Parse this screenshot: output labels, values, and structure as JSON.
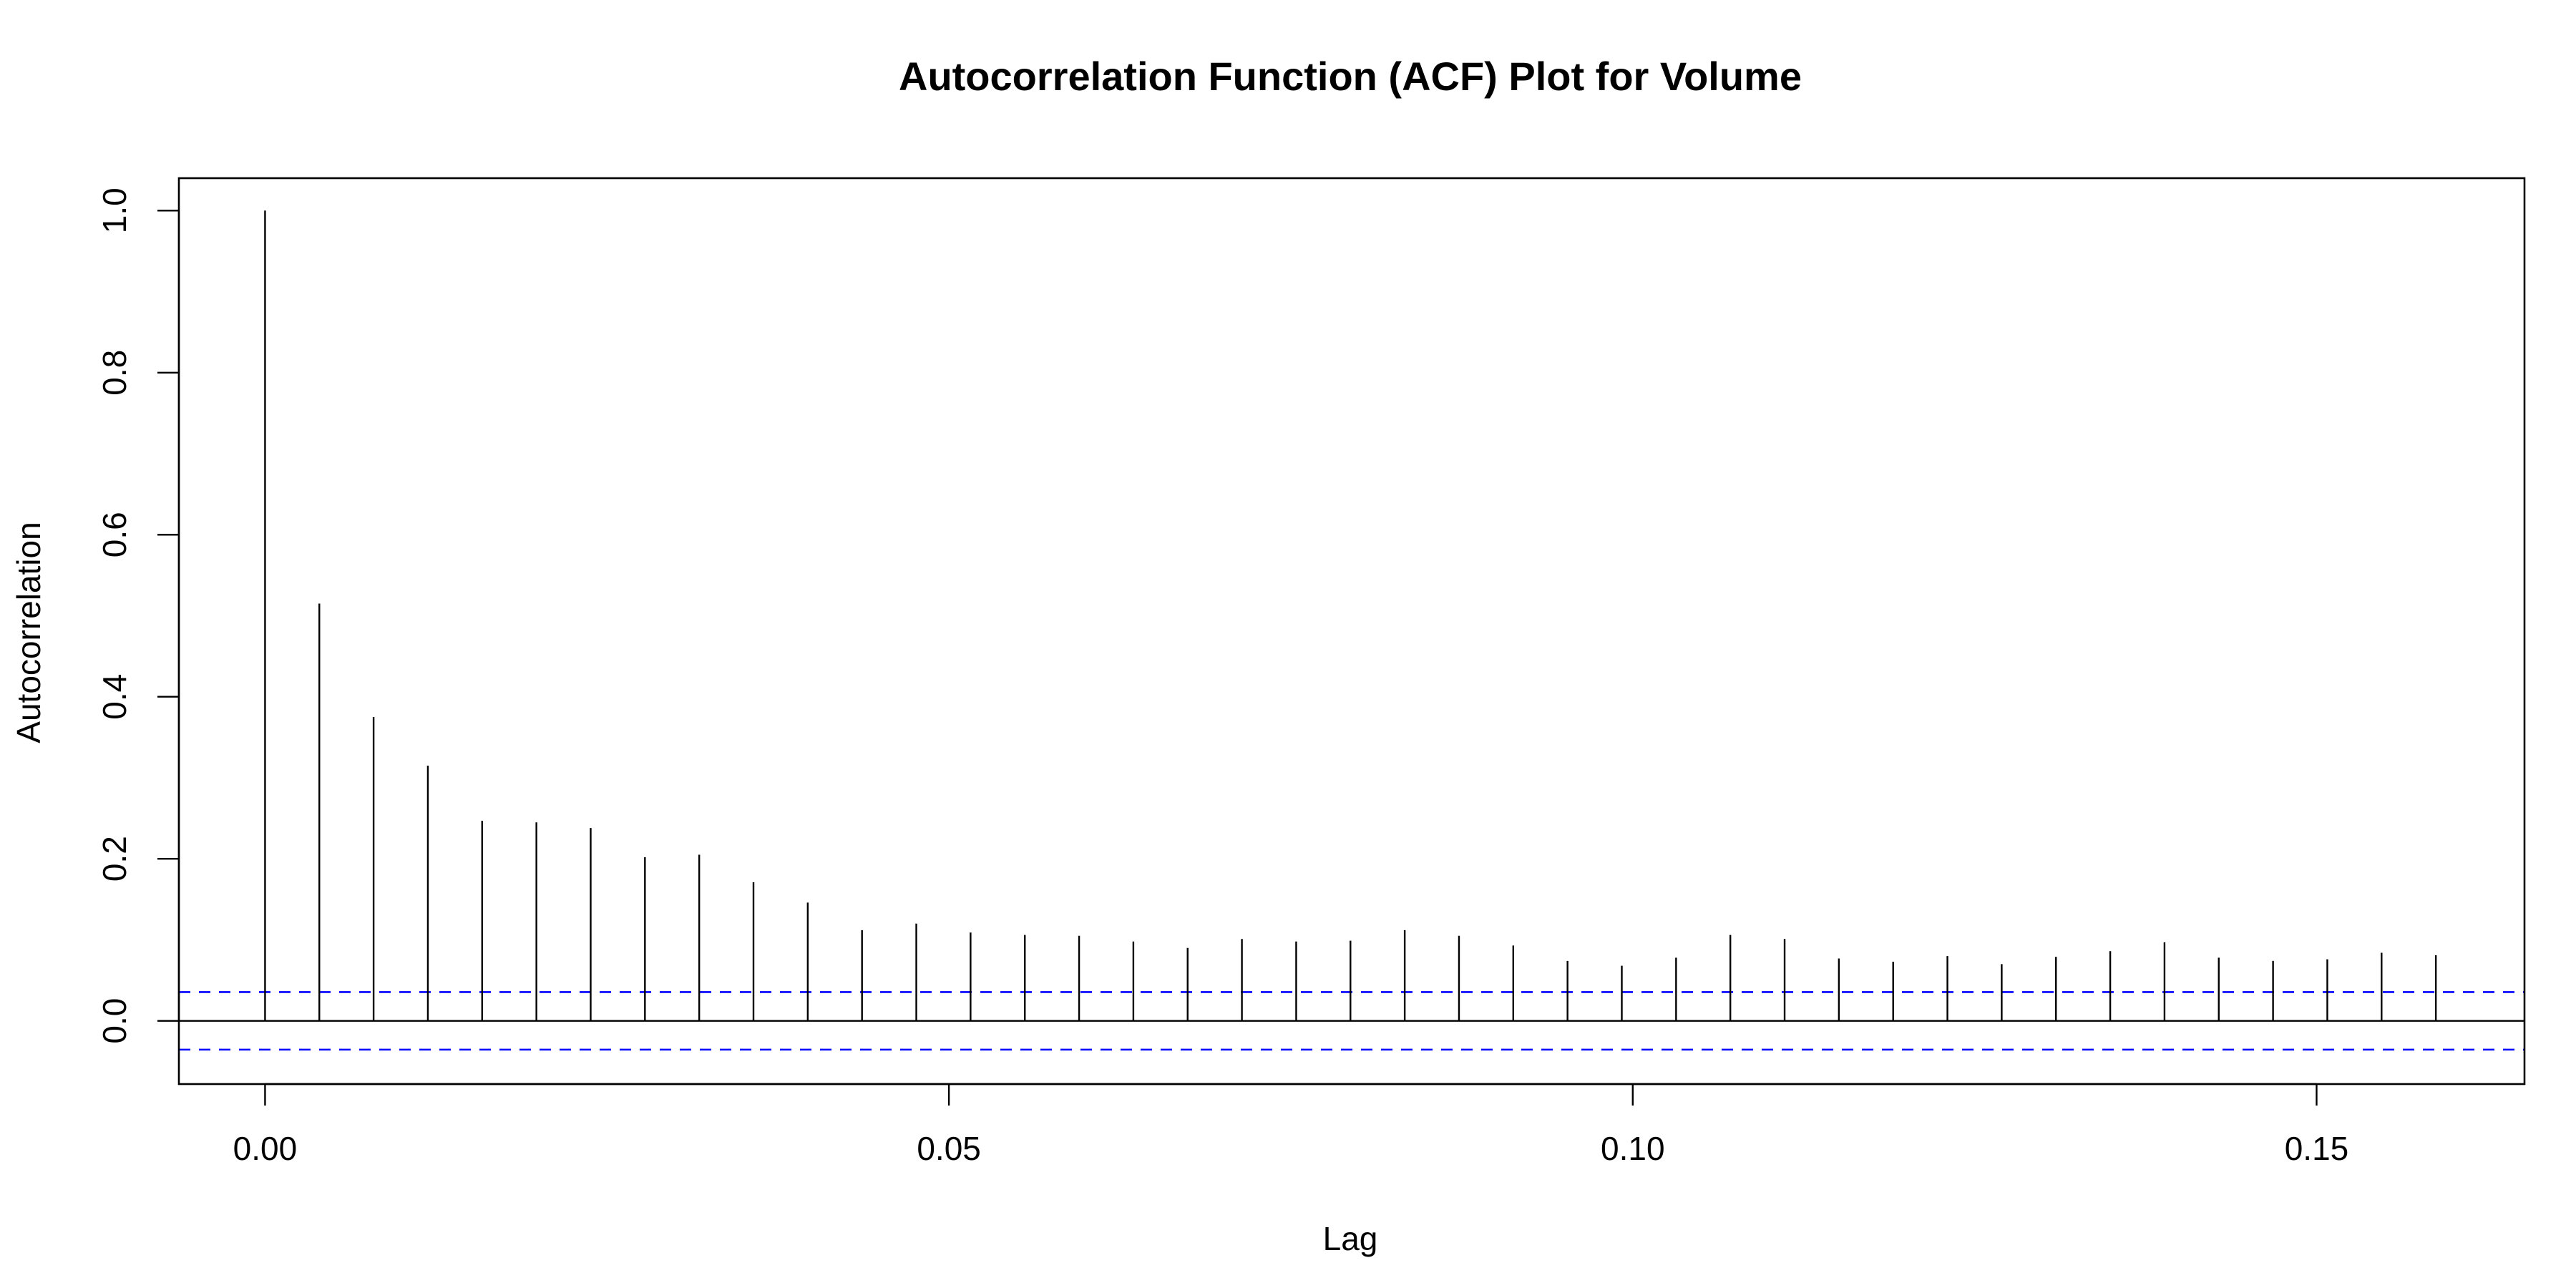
{
  "chart_data": {
    "type": "bar",
    "title": "Autocorrelation Function (ACF) Plot for Volume",
    "xlabel": "Lag",
    "ylabel": "Autocorrelation",
    "xlim": [
      -0.0063,
      0.1652
    ],
    "ylim": [
      -0.078,
      1.04
    ],
    "x_ticks": [
      0.0,
      0.05,
      0.1,
      0.15
    ],
    "x_tick_labels": [
      "0.00",
      "0.05",
      "0.10",
      "0.15"
    ],
    "y_ticks": [
      0.0,
      0.2,
      0.4,
      0.6,
      0.8,
      1.0
    ],
    "y_tick_labels": [
      "0.0",
      "0.2",
      "0.4",
      "0.6",
      "0.8",
      "1.0"
    ],
    "lag_step": 0.003968,
    "x": [
      0.0,
      0.004,
      0.008,
      0.012,
      0.016,
      0.02,
      0.024,
      0.028,
      0.032,
      0.036,
      0.04,
      0.044,
      0.048,
      0.052,
      0.056,
      0.06,
      0.063,
      0.067,
      0.071,
      0.075,
      0.079,
      0.083,
      0.087,
      0.091,
      0.095,
      0.099,
      0.103,
      0.107,
      0.111,
      0.115,
      0.119,
      0.123,
      0.127,
      0.131,
      0.135,
      0.139,
      0.143,
      0.147,
      0.151,
      0.155,
      0.159
    ],
    "values": [
      1.0,
      0.515,
      0.375,
      0.315,
      0.247,
      0.245,
      0.238,
      0.202,
      0.205,
      0.171,
      0.146,
      0.112,
      0.12,
      0.109,
      0.106,
      0.105,
      0.098,
      0.09,
      0.101,
      0.098,
      0.099,
      0.112,
      0.105,
      0.093,
      0.074,
      0.068,
      0.078,
      0.106,
      0.101,
      0.077,
      0.073,
      0.08,
      0.07,
      0.079,
      0.086,
      0.097,
      0.078,
      0.074,
      0.076,
      0.084,
      0.081
    ],
    "confidence_bounds": [
      0.0355,
      -0.0355
    ],
    "bar_color": "#000000",
    "bound_color": "#0000ff",
    "zero_line": true,
    "grid": false,
    "legend": false
  }
}
